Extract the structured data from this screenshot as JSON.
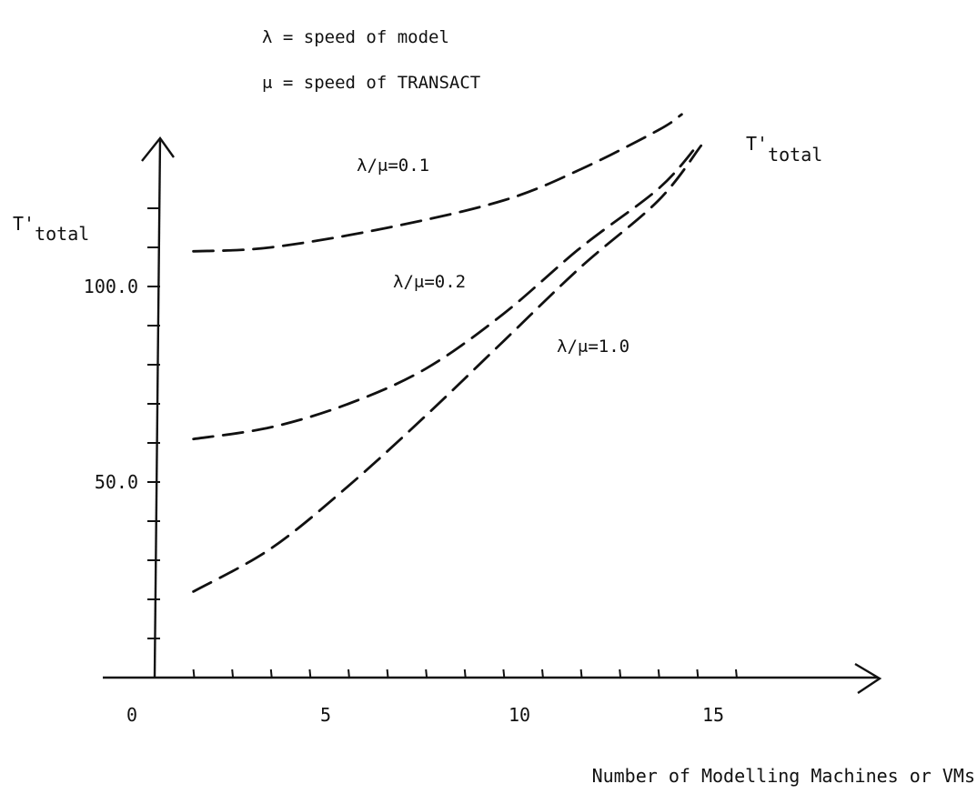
{
  "definitions": [
    "λ = speed of model",
    "μ = speed of TRANSACT"
  ],
  "chart_data": {
    "type": "line",
    "xlabel": "Number of Modelling Machines or VMs",
    "ylabel": "T'total",
    "ylabel_parts": {
      "main": "T'",
      "sub": "total"
    },
    "right_label_parts": {
      "main": "T'",
      "sub": "total"
    },
    "xlim": [
      0,
      18
    ],
    "ylim": [
      0,
      145
    ],
    "x_tick_labels": [
      {
        "value": 0,
        "label": "0"
      },
      {
        "value": 5,
        "label": "5"
      },
      {
        "value": 10,
        "label": "10"
      },
      {
        "value": 15,
        "label": "15"
      }
    ],
    "y_tick_labels": [
      {
        "value": 50,
        "label": "50.0"
      },
      {
        "value": 100,
        "label": "100.0"
      }
    ],
    "x_minor_ticks": [
      1,
      2,
      3,
      4,
      5,
      6,
      7,
      8,
      9,
      10,
      11,
      12,
      13,
      14,
      15
    ],
    "y_minor_ticks": [
      10,
      20,
      30,
      40,
      50,
      60,
      70,
      80,
      90,
      100,
      110,
      120
    ],
    "line_style": "dashed",
    "series": [
      {
        "name": "λ/μ=0.1",
        "x": [
          1,
          3,
          6,
          9,
          11,
          13,
          13.6
        ],
        "y": [
          109,
          110,
          115,
          122,
          130,
          140,
          144
        ]
      },
      {
        "name": "λ/μ=0.2",
        "x": [
          1,
          3,
          5,
          7,
          9,
          11,
          13,
          14
        ],
        "y": [
          61,
          64,
          70,
          79,
          93,
          110,
          125,
          136
        ]
      },
      {
        "name": "λ/μ=1.0",
        "x": [
          1,
          3,
          5,
          7,
          9,
          11,
          13,
          14.1
        ],
        "y": [
          22,
          33,
          49,
          67,
          86,
          105,
          122,
          136
        ]
      }
    ]
  }
}
